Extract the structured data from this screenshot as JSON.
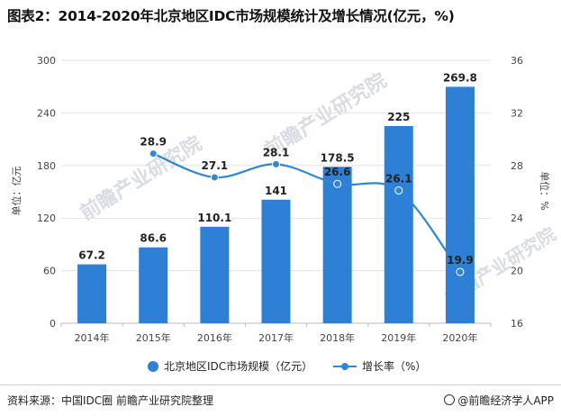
{
  "title": "图表2：2014-2020年北京地区IDC市场规模统计及增长情况(亿元，%)",
  "footer": {
    "source": "资料来源：中国IDC圈 前瞻产业研究院整理",
    "brand": "@前瞻经济学人APP"
  },
  "watermark": "前瞻产业研究院",
  "colors": {
    "bar": "#2e7fd6",
    "line": "#2f86d2",
    "grid": "#e3e3e3"
  },
  "chart_data": {
    "type": "bar",
    "categories": [
      "2014年",
      "2015年",
      "2016年",
      "2017年",
      "2018年",
      "2019年",
      "2020年"
    ],
    "series": [
      {
        "name": "北京地区IDC市场规模（亿元）",
        "type": "bar",
        "axis": "left",
        "values": [
          67.2,
          86.6,
          110.1,
          141,
          178.5,
          225,
          269.8
        ],
        "labels": [
          "67.2",
          "86.6",
          "110.1",
          "141",
          "178.5",
          "225",
          "269.8"
        ]
      },
      {
        "name": "增长率（%）",
        "type": "line",
        "axis": "right",
        "values": [
          null,
          28.9,
          27.1,
          28.1,
          26.6,
          26.1,
          19.9
        ],
        "labels": [
          "",
          "28.9",
          "27.1",
          "28.1",
          "26.6",
          "26.1",
          "19.9"
        ]
      }
    ],
    "ylabel": "单位：亿元",
    "y2label": "单位：%",
    "ylim": [
      0,
      300
    ],
    "yticks": [
      "0",
      "60",
      "120",
      "180",
      "240",
      "300"
    ],
    "y2lim": [
      16,
      36
    ],
    "y2ticks": [
      "16",
      "20",
      "24",
      "28",
      "32",
      "36"
    ],
    "grid": true,
    "legend": "bottom-center"
  }
}
